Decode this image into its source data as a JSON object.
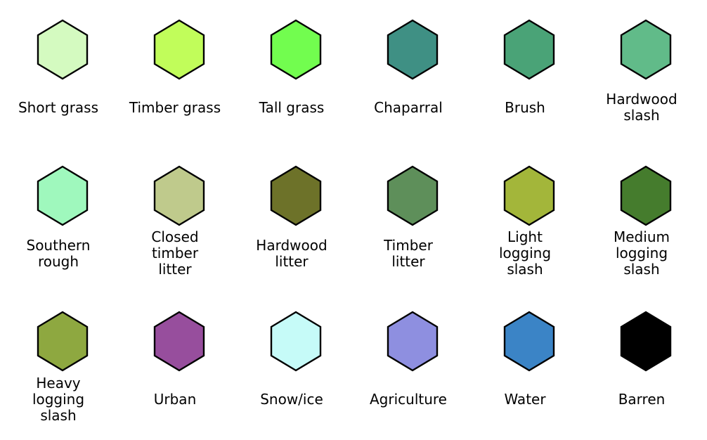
{
  "legend": {
    "items": [
      {
        "label": "Short grass",
        "color": "#d4fac0"
      },
      {
        "label": "Timber grass",
        "color": "#c1fd5a"
      },
      {
        "label": "Tall grass",
        "color": "#72fd4f"
      },
      {
        "label": "Chaparral",
        "color": "#3f9084"
      },
      {
        "label": "Brush",
        "color": "#4aa377"
      },
      {
        "label": "Hardwood\nslash",
        "color": "#61bb89"
      },
      {
        "label": "Southern\nrough",
        "color": "#9ff8bd"
      },
      {
        "label": "Closed\ntimber\nlitter",
        "color": "#bfca8c"
      },
      {
        "label": "Hardwood\nlitter",
        "color": "#6d7229"
      },
      {
        "label": "Timber\nlitter",
        "color": "#5e8f5a"
      },
      {
        "label": "Light\nlogging\nslash",
        "color": "#a3b63a"
      },
      {
        "label": "Medium\nlogging\nslash",
        "color": "#457c2d"
      },
      {
        "label": "Heavy\nlogging\nslash",
        "color": "#8ea840"
      },
      {
        "label": "Urban",
        "color": "#974e9d"
      },
      {
        "label": "Snow/ice",
        "color": "#c6fbf8"
      },
      {
        "label": "Agriculture",
        "color": "#8e8fe0"
      },
      {
        "label": "Water",
        "color": "#3b84c6"
      },
      {
        "label": "Barren",
        "color": "#000000"
      }
    ]
  }
}
